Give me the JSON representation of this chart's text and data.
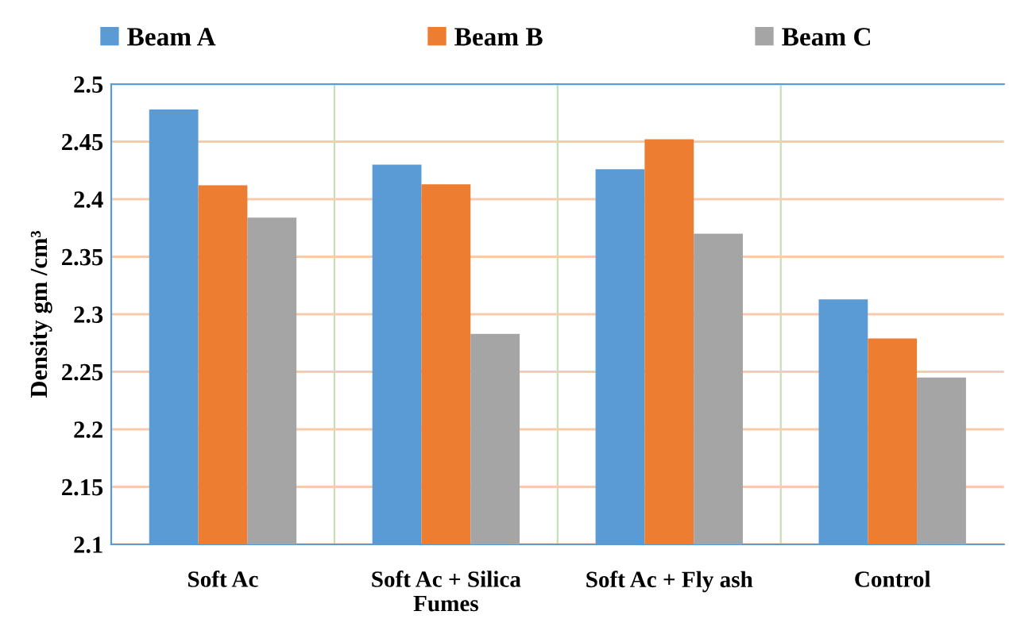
{
  "chart_data": {
    "type": "bar",
    "ylabel": "Density gm /cm³",
    "categories": [
      "Soft Ac",
      "Soft Ac + Silica\nFumes",
      "Soft Ac + Fly ash",
      "Control"
    ],
    "series": [
      {
        "name": "Beam A",
        "color": "#5b9bd5",
        "values": [
          2.478,
          2.43,
          2.426,
          2.313
        ]
      },
      {
        "name": "Beam B",
        "color": "#ed7d31",
        "values": [
          2.412,
          2.413,
          2.452,
          2.279
        ]
      },
      {
        "name": "Beam C",
        "color": "#a5a5a5",
        "values": [
          2.384,
          2.283,
          2.37,
          2.245
        ]
      }
    ],
    "ylim": [
      2.1,
      2.5
    ],
    "yticks": [
      2.1,
      2.15,
      2.2,
      2.25,
      2.3,
      2.35,
      2.4,
      2.45,
      2.5
    ],
    "grid": true,
    "legend": "top"
  }
}
